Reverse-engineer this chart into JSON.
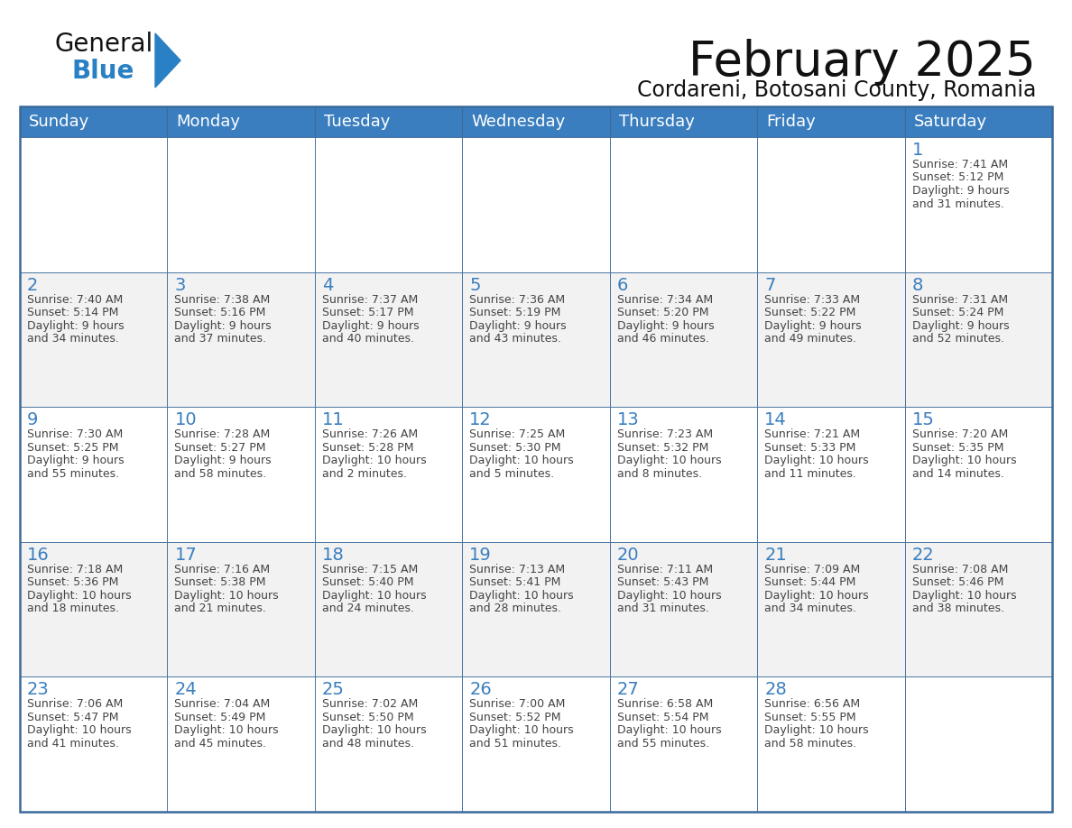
{
  "title": "February 2025",
  "subtitle": "Cordareni, Botosani County, Romania",
  "header_bg": "#3A7EBF",
  "header_text_color": "#FFFFFF",
  "cell_bg_white": "#FFFFFF",
  "cell_bg_gray": "#F2F2F2",
  "border_color": "#3A6A9A",
  "day_number_color": "#3A7EBF",
  "cell_text_color": "#444444",
  "days_of_week": [
    "Sunday",
    "Monday",
    "Tuesday",
    "Wednesday",
    "Thursday",
    "Friday",
    "Saturday"
  ],
  "weeks": [
    [
      {
        "day": null,
        "info": null
      },
      {
        "day": null,
        "info": null
      },
      {
        "day": null,
        "info": null
      },
      {
        "day": null,
        "info": null
      },
      {
        "day": null,
        "info": null
      },
      {
        "day": null,
        "info": null
      },
      {
        "day": 1,
        "info": "Sunrise: 7:41 AM\nSunset: 5:12 PM\nDaylight: 9 hours\nand 31 minutes."
      }
    ],
    [
      {
        "day": 2,
        "info": "Sunrise: 7:40 AM\nSunset: 5:14 PM\nDaylight: 9 hours\nand 34 minutes."
      },
      {
        "day": 3,
        "info": "Sunrise: 7:38 AM\nSunset: 5:16 PM\nDaylight: 9 hours\nand 37 minutes."
      },
      {
        "day": 4,
        "info": "Sunrise: 7:37 AM\nSunset: 5:17 PM\nDaylight: 9 hours\nand 40 minutes."
      },
      {
        "day": 5,
        "info": "Sunrise: 7:36 AM\nSunset: 5:19 PM\nDaylight: 9 hours\nand 43 minutes."
      },
      {
        "day": 6,
        "info": "Sunrise: 7:34 AM\nSunset: 5:20 PM\nDaylight: 9 hours\nand 46 minutes."
      },
      {
        "day": 7,
        "info": "Sunrise: 7:33 AM\nSunset: 5:22 PM\nDaylight: 9 hours\nand 49 minutes."
      },
      {
        "day": 8,
        "info": "Sunrise: 7:31 AM\nSunset: 5:24 PM\nDaylight: 9 hours\nand 52 minutes."
      }
    ],
    [
      {
        "day": 9,
        "info": "Sunrise: 7:30 AM\nSunset: 5:25 PM\nDaylight: 9 hours\nand 55 minutes."
      },
      {
        "day": 10,
        "info": "Sunrise: 7:28 AM\nSunset: 5:27 PM\nDaylight: 9 hours\nand 58 minutes."
      },
      {
        "day": 11,
        "info": "Sunrise: 7:26 AM\nSunset: 5:28 PM\nDaylight: 10 hours\nand 2 minutes."
      },
      {
        "day": 12,
        "info": "Sunrise: 7:25 AM\nSunset: 5:30 PM\nDaylight: 10 hours\nand 5 minutes."
      },
      {
        "day": 13,
        "info": "Sunrise: 7:23 AM\nSunset: 5:32 PM\nDaylight: 10 hours\nand 8 minutes."
      },
      {
        "day": 14,
        "info": "Sunrise: 7:21 AM\nSunset: 5:33 PM\nDaylight: 10 hours\nand 11 minutes."
      },
      {
        "day": 15,
        "info": "Sunrise: 7:20 AM\nSunset: 5:35 PM\nDaylight: 10 hours\nand 14 minutes."
      }
    ],
    [
      {
        "day": 16,
        "info": "Sunrise: 7:18 AM\nSunset: 5:36 PM\nDaylight: 10 hours\nand 18 minutes."
      },
      {
        "day": 17,
        "info": "Sunrise: 7:16 AM\nSunset: 5:38 PM\nDaylight: 10 hours\nand 21 minutes."
      },
      {
        "day": 18,
        "info": "Sunrise: 7:15 AM\nSunset: 5:40 PM\nDaylight: 10 hours\nand 24 minutes."
      },
      {
        "day": 19,
        "info": "Sunrise: 7:13 AM\nSunset: 5:41 PM\nDaylight: 10 hours\nand 28 minutes."
      },
      {
        "day": 20,
        "info": "Sunrise: 7:11 AM\nSunset: 5:43 PM\nDaylight: 10 hours\nand 31 minutes."
      },
      {
        "day": 21,
        "info": "Sunrise: 7:09 AM\nSunset: 5:44 PM\nDaylight: 10 hours\nand 34 minutes."
      },
      {
        "day": 22,
        "info": "Sunrise: 7:08 AM\nSunset: 5:46 PM\nDaylight: 10 hours\nand 38 minutes."
      }
    ],
    [
      {
        "day": 23,
        "info": "Sunrise: 7:06 AM\nSunset: 5:47 PM\nDaylight: 10 hours\nand 41 minutes."
      },
      {
        "day": 24,
        "info": "Sunrise: 7:04 AM\nSunset: 5:49 PM\nDaylight: 10 hours\nand 45 minutes."
      },
      {
        "day": 25,
        "info": "Sunrise: 7:02 AM\nSunset: 5:50 PM\nDaylight: 10 hours\nand 48 minutes."
      },
      {
        "day": 26,
        "info": "Sunrise: 7:00 AM\nSunset: 5:52 PM\nDaylight: 10 hours\nand 51 minutes."
      },
      {
        "day": 27,
        "info": "Sunrise: 6:58 AM\nSunset: 5:54 PM\nDaylight: 10 hours\nand 55 minutes."
      },
      {
        "day": 28,
        "info": "Sunrise: 6:56 AM\nSunset: 5:55 PM\nDaylight: 10 hours\nand 58 minutes."
      },
      {
        "day": null,
        "info": null
      }
    ]
  ],
  "logo_general_color": "#111111",
  "logo_blue_color": "#2980C4",
  "logo_triangle_color": "#2980C4",
  "title_fontsize": 38,
  "subtitle_fontsize": 17,
  "header_fontsize": 13,
  "day_num_fontsize": 14,
  "cell_text_fontsize": 9
}
